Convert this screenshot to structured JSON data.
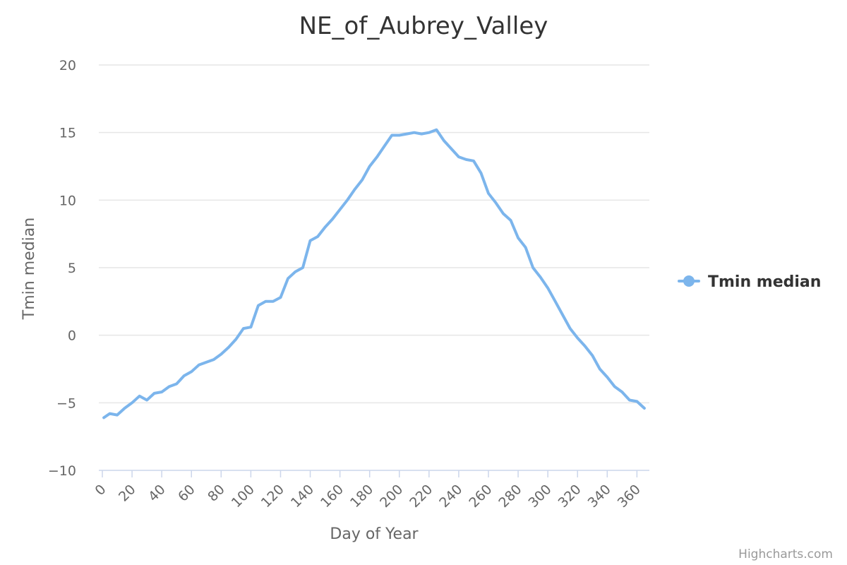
{
  "chart_data": {
    "type": "line",
    "title": "NE_of_Aubrey_Valley",
    "xlabel": "Day of Year",
    "ylabel": "Tmin median",
    "xlim": [
      0,
      366
    ],
    "ylim": [
      -10,
      20
    ],
    "x_ticks": [
      0,
      20,
      40,
      60,
      80,
      100,
      120,
      140,
      160,
      180,
      200,
      220,
      240,
      260,
      280,
      300,
      320,
      340,
      360
    ],
    "y_ticks": [
      -10,
      -5,
      0,
      5,
      10,
      15,
      20
    ],
    "grid": true,
    "legend_position": "right",
    "series": [
      {
        "name": "Tmin median",
        "color": "#7cb5ec",
        "x": [
          1,
          5,
          10,
          15,
          20,
          25,
          30,
          35,
          40,
          45,
          50,
          55,
          60,
          65,
          70,
          75,
          80,
          85,
          90,
          95,
          100,
          105,
          110,
          115,
          120,
          125,
          130,
          135,
          140,
          145,
          150,
          155,
          160,
          165,
          170,
          175,
          180,
          185,
          190,
          195,
          200,
          205,
          210,
          215,
          220,
          225,
          230,
          235,
          240,
          245,
          250,
          255,
          260,
          265,
          270,
          275,
          280,
          285,
          290,
          295,
          300,
          305,
          310,
          315,
          320,
          325,
          330,
          335,
          340,
          345,
          350,
          355,
          360,
          365
        ],
        "values": [
          -6.1,
          -5.8,
          -5.9,
          -5.4,
          -5.0,
          -4.5,
          -4.8,
          -4.3,
          -4.2,
          -3.8,
          -3.6,
          -3.0,
          -2.7,
          -2.2,
          -2.0,
          -1.8,
          -1.4,
          -0.9,
          -0.3,
          0.5,
          0.6,
          2.2,
          2.5,
          2.5,
          2.8,
          4.2,
          4.7,
          5.0,
          7.0,
          7.3,
          8.0,
          8.6,
          9.3,
          10.0,
          10.8,
          11.5,
          12.5,
          13.2,
          14.0,
          14.8,
          14.8,
          14.9,
          15.0,
          14.9,
          15.0,
          15.2,
          14.4,
          13.8,
          13.2,
          13.0,
          12.9,
          12.0,
          10.5,
          9.8,
          9.0,
          8.5,
          7.2,
          6.5,
          5.0,
          4.3,
          3.5,
          2.5,
          1.5,
          0.5,
          -0.2,
          -0.8,
          -1.5,
          -2.5,
          -3.1,
          -3.8,
          -4.2,
          -4.8,
          -4.9,
          -5.4
        ]
      }
    ]
  },
  "credits": "Highcharts.com"
}
